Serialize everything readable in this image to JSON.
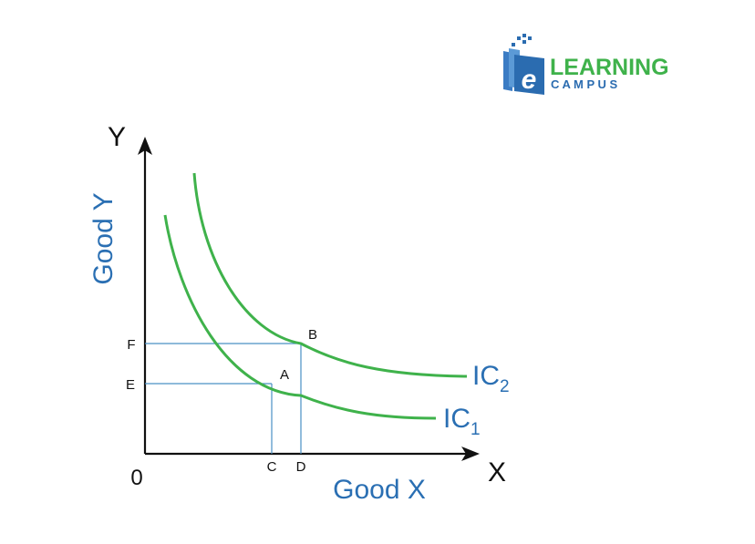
{
  "logo": {
    "line1": "LEARNING",
    "line2": "C A M P U S",
    "glyph": "e",
    "colors": {
      "blue": "#2b6cb0",
      "green": "#3fb24b"
    }
  },
  "diagram": {
    "y_axis_letter": "Y",
    "x_axis_letter": "X",
    "origin_label": "0",
    "y_axis_title": "Good Y",
    "x_axis_title": "Good X",
    "curves": [
      {
        "id": "ic1",
        "name": "IC",
        "subscript": "1"
      },
      {
        "id": "ic2",
        "name": "IC",
        "subscript": "2"
      }
    ],
    "points": {
      "a": "A",
      "b": "B"
    },
    "x_ticks": {
      "c": "C",
      "d": "D"
    },
    "y_ticks": {
      "e": "E",
      "f": "F"
    },
    "colors": {
      "curve": "#3fb24b",
      "guide": "#4a90c4",
      "axis": "#111111",
      "title": "#2a6fb3"
    }
  }
}
